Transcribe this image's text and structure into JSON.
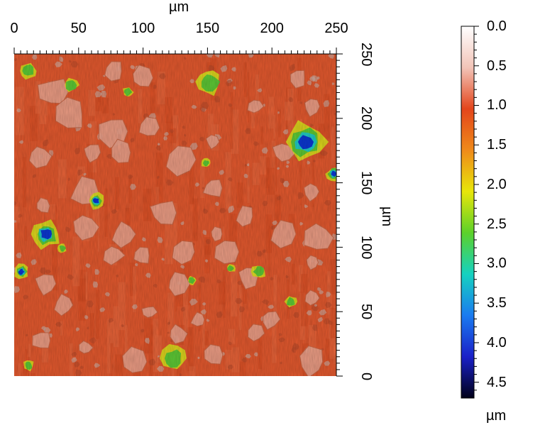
{
  "map": {
    "unit_top": "µm",
    "unit_right": "µm",
    "x_ticks": [
      "0",
      "50",
      "100",
      "150",
      "200",
      "250"
    ],
    "y_ticks": [
      "0",
      "50",
      "100",
      "150",
      "200",
      "250"
    ],
    "x_range": [
      0,
      250
    ],
    "y_range": [
      0,
      250
    ]
  },
  "colorbar": {
    "unit": "µm",
    "ticks": [
      "0.0",
      "0.5",
      "1.0",
      "1.5",
      "2.0",
      "2.5",
      "3.0",
      "3.5",
      "4.0",
      "4.5"
    ],
    "range": [
      0.0,
      4.7
    ],
    "stops": [
      "#ffffff",
      "#f2c4b8",
      "#e3451b",
      "#ef8a1a",
      "#e8e60a",
      "#5cd12a",
      "#16d2c0",
      "#1a7bf0",
      "#1a20c8",
      "#000018"
    ]
  },
  "colors": {
    "surface_base": "#e0582e",
    "grain": "#e9a08a",
    "high": "#d8df1c",
    "deep": "#0b2fd0"
  }
}
